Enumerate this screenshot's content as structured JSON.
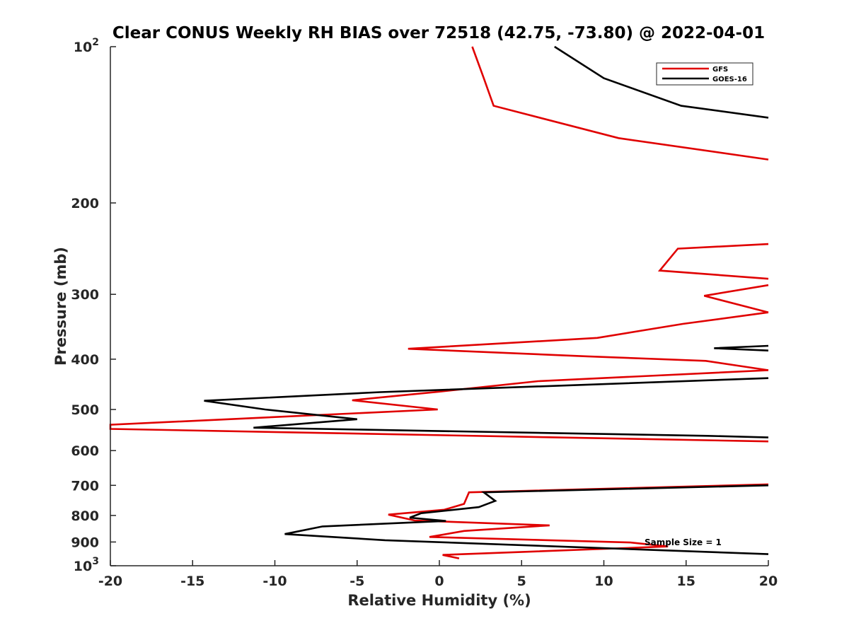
{
  "chart_data": {
    "type": "line",
    "title": "Clear CONUS Weekly RH BIAS over 72518 (42.75, -73.80) @ 2022-04-01",
    "xlabel": "Relative Humidity (%)",
    "ylabel": "Pressure (mb)",
    "xlim": [
      -20,
      20
    ],
    "ylim": [
      1000,
      100
    ],
    "yscale": "log",
    "x_ticks": [
      -20,
      -15,
      -10,
      -5,
      0,
      5,
      10,
      15,
      20
    ],
    "x_tick_labels": [
      "-20",
      "-15",
      "-10",
      "-5",
      "0",
      "5",
      "10",
      "15",
      "20"
    ],
    "y_ticks": [
      {
        "value": 100,
        "label": "10",
        "sup": "2"
      },
      {
        "value": 200,
        "label": "200"
      },
      {
        "value": 300,
        "label": "300"
      },
      {
        "value": 400,
        "label": "400"
      },
      {
        "value": 500,
        "label": "500"
      },
      {
        "value": 600,
        "label": "600"
      },
      {
        "value": 700,
        "label": "700"
      },
      {
        "value": 800,
        "label": "800"
      },
      {
        "value": 900,
        "label": "900"
      },
      {
        "value": 1000,
        "label": "10",
        "sup": "3"
      }
    ],
    "legend_position": "top-right",
    "annotation": "Sample Size = 1",
    "series": [
      {
        "name": "GFS",
        "color": "#e00000",
        "segments": [
          [
            [
              2.0,
              100
            ],
            [
              2.7,
              115
            ],
            [
              3.3,
              130
            ],
            [
              10.9,
              150
            ],
            [
              20,
              165
            ]
          ],
          [
            [
              20,
              240
            ],
            [
              14.5,
              245
            ],
            [
              13.4,
              270
            ],
            [
              20,
              280
            ]
          ],
          [
            [
              20,
              288
            ],
            [
              16.1,
              302
            ],
            [
              20,
              325
            ]
          ],
          [
            [
              20,
              325
            ],
            [
              14.8,
              342
            ],
            [
              9.6,
              364
            ],
            [
              -1.9,
              382
            ],
            [
              9.0,
              395
            ],
            [
              16.2,
              403
            ],
            [
              20,
              420
            ]
          ],
          [
            [
              20,
              420
            ],
            [
              6.0,
              441
            ],
            [
              0.0,
              462
            ],
            [
              -5.3,
              480
            ],
            [
              -0.1,
              500
            ],
            [
              -20,
              535
            ],
            [
              -20,
              545
            ],
            [
              20,
              576
            ]
          ],
          [
            [
              20,
              697
            ],
            [
              1.8,
              722
            ],
            [
              1.5,
              760
            ],
            [
              0.3,
              780
            ],
            [
              -3.1,
              797
            ],
            [
              -1.5,
              818
            ],
            [
              6.7,
              836
            ],
            [
              1.5,
              857
            ],
            [
              -0.6,
              880
            ],
            [
              11.6,
              902
            ],
            [
              13.9,
              918
            ],
            [
              0.2,
              953
            ],
            [
              1.2,
              968
            ]
          ]
        ]
      },
      {
        "name": "GOES-16",
        "color": "#000000",
        "segments": [
          [
            [
              7.0,
              100
            ],
            [
              10.0,
              115
            ],
            [
              14.7,
              130
            ],
            [
              20,
              137
            ]
          ],
          [
            [
              20,
              377
            ],
            [
              16.7,
              381
            ],
            [
              20,
              385
            ]
          ],
          [
            [
              20,
              435
            ],
            [
              -3.6,
              463
            ],
            [
              -14.3,
              481
            ],
            [
              -10.6,
              500
            ],
            [
              -5.0,
              522
            ],
            [
              -11.3,
              542
            ],
            [
              16.3,
              562
            ],
            [
              20,
              566
            ]
          ],
          [
            [
              20,
              700
            ],
            [
              2.7,
              722
            ],
            [
              3.4,
              750
            ],
            [
              2.4,
              771
            ],
            [
              -1.1,
              792
            ],
            [
              -1.8,
              808
            ],
            [
              0.4,
              820
            ],
            [
              -7.1,
              840
            ],
            [
              -9.4,
              869
            ],
            [
              -3.3,
              893
            ],
            [
              20,
              950
            ]
          ]
        ]
      }
    ]
  }
}
